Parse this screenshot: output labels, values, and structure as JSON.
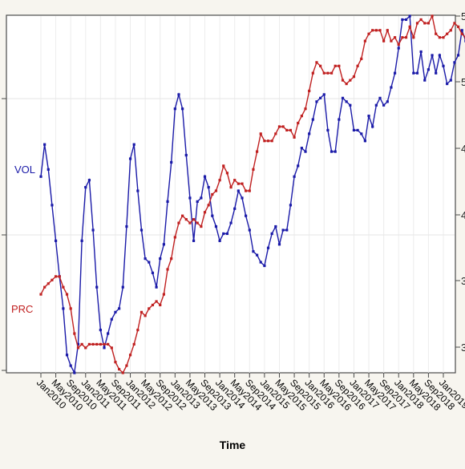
{
  "chart_data": {
    "type": "line",
    "title": "",
    "xlabel": "Time",
    "ylabel": "",
    "x_tick_labels": [
      "Jan2010",
      "May2010",
      "Sep2010",
      "Jan2011",
      "May2011",
      "Sep2011",
      "Jan2012",
      "May2012",
      "Sep2012",
      "Jan2013",
      "May2013",
      "Sep2013",
      "Jan2014",
      "May2014",
      "Sep2014",
      "Jan2015",
      "May2015",
      "Sep2015",
      "Jan2016",
      "May2016",
      "Sep2016",
      "Jan2017",
      "May2017",
      "Sep2017",
      "Jan2018",
      "May2018",
      "Sep2018",
      "Jan2019"
    ],
    "x_tick_step_months": 4,
    "x_start": "Jan2010",
    "left_axis_ticks": [],
    "right_axis_ticks": [
      "5",
      "5",
      "4",
      "4",
      "3",
      "3"
    ],
    "grid": true,
    "series": [
      {
        "name": "VOL",
        "color": "#1a1aa8",
        "axis": "left",
        "ylim": [
          0,
          100
        ],
        "values": [
          55,
          64,
          57,
          47,
          37,
          27,
          18,
          5,
          2,
          0,
          8,
          37,
          52,
          54,
          40,
          24,
          12,
          7,
          11,
          15,
          17,
          18,
          24,
          41,
          60,
          64,
          51,
          40,
          32,
          31,
          28,
          24,
          32,
          36,
          48,
          59,
          74,
          78,
          74,
          61,
          49,
          37,
          48,
          49,
          55,
          52,
          44,
          41,
          37,
          39,
          39,
          42,
          46,
          51,
          49,
          44,
          40,
          34,
          33,
          31,
          30,
          35,
          39,
          41,
          36,
          40,
          40,
          47,
          55,
          58,
          63,
          62,
          67,
          71,
          76,
          77,
          78,
          68,
          62,
          62,
          71,
          77,
          76,
          75,
          68,
          68,
          67,
          65,
          72,
          69,
          75,
          77,
          75,
          76,
          80,
          84,
          91,
          99,
          99,
          100,
          84,
          84,
          90,
          82,
          85,
          89,
          84,
          89,
          86,
          81,
          82,
          87,
          89,
          96,
          93,
          88,
          76,
          74,
          71,
          68,
          62,
          56,
          49,
          42
        ]
      },
      {
        "name": "PRC",
        "color": "#c02020",
        "axis": "right",
        "ylim": [
          0,
          100
        ],
        "values": [
          22,
          24,
          25,
          26,
          27,
          27,
          24,
          22,
          18,
          11,
          7,
          8,
          7,
          8,
          8,
          8,
          8,
          8,
          8,
          7,
          3,
          1,
          0,
          2,
          5,
          8,
          12,
          17,
          16,
          18,
          19,
          20,
          19,
          22,
          29,
          32,
          38,
          42,
          44,
          43,
          42,
          43,
          42,
          41,
          45,
          47,
          50,
          51,
          54,
          58,
          56,
          52,
          54,
          53,
          53,
          51,
          51,
          57,
          62,
          67,
          65,
          65,
          65,
          67,
          69,
          69,
          68,
          68,
          66,
          70,
          72,
          74,
          79,
          84,
          87,
          86,
          84,
          84,
          84,
          86,
          86,
          82,
          81,
          82,
          83,
          86,
          88,
          93,
          95,
          96,
          96,
          96,
          93,
          96,
          93,
          94,
          92,
          94,
          94,
          97,
          94,
          98,
          99,
          98,
          98,
          100,
          95,
          94,
          94,
          95,
          96,
          98,
          97,
          95,
          94,
          91,
          90,
          89,
          89,
          89,
          88,
          88,
          87,
          87
        ]
      }
    ]
  }
}
